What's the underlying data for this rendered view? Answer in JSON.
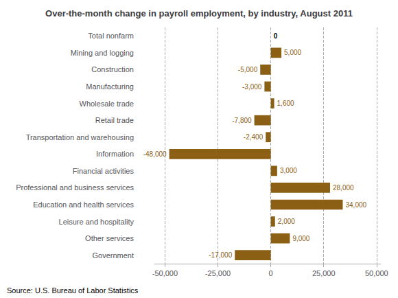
{
  "chart_data": {
    "type": "bar",
    "orientation": "horizontal",
    "title": "Over-the-month change in payroll employment, by industry, August 2011",
    "annotations": [
      "Source: U.S. Bureau of Labor Statistics"
    ],
    "categories": [
      "Total nonfarm",
      "Mining and logging",
      "Construction",
      "Manufacturing",
      "Wholesale trade",
      "Retail trade",
      "Transportation and warehousing",
      "Information",
      "Financial activities",
      "Professional and business services",
      "Education and health services",
      "Leisure and hospitality",
      "Other services",
      "Government"
    ],
    "values": [
      0,
      5000,
      -5000,
      -3000,
      1600,
      -7800,
      -2400,
      -48000,
      3000,
      28000,
      34000,
      2000,
      9000,
      -17000
    ],
    "value_labels": [
      "0",
      "5,000",
      "-5,000",
      "-3,000",
      "1,600",
      "-7,800",
      "-2,400",
      "-48,000",
      "3,000",
      "28,000",
      "34,000",
      "2,000",
      "9,000",
      "-17,000"
    ],
    "data_labels": true,
    "color": "#8B6014",
    "xlim": [
      -55000,
      52000
    ],
    "xticks": [
      {
        "value": -50000,
        "label": "-50,000"
      },
      {
        "value": -25000,
        "label": "-25,000"
      },
      0,
      {
        "value": 25000,
        "label": "25,000"
      },
      {
        "value": 50000,
        "label": "50,000"
      }
    ],
    "grid": true
  }
}
